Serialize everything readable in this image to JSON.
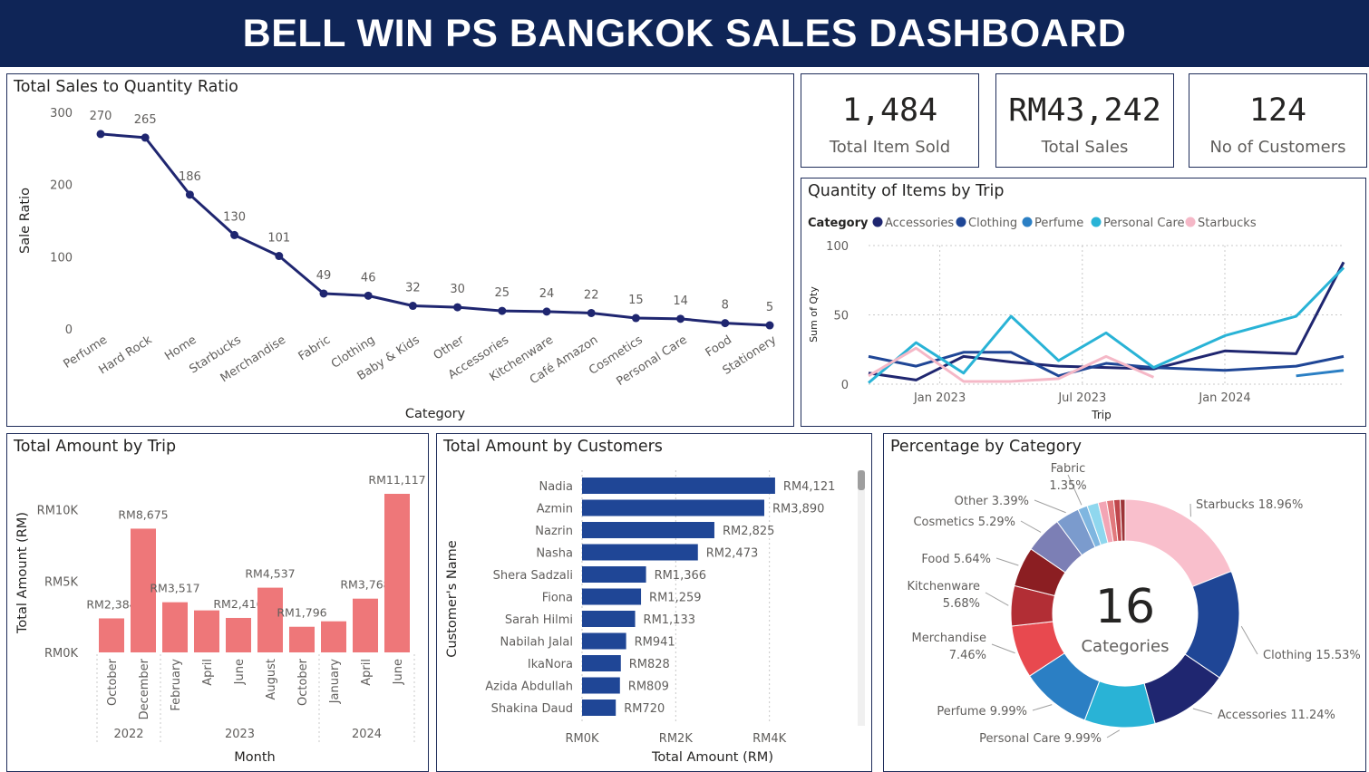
{
  "header": {
    "title": "BELL WIN PS BANGKOK SALES DASHBOARD"
  },
  "kpis": [
    {
      "value": "1,484",
      "label": "Total Item Sold"
    },
    {
      "value": "RM43,242",
      "label": "Total Sales"
    },
    {
      "value": "124",
      "label": "No of Customers"
    }
  ],
  "panels": {
    "ratio": "Total Sales to Quantity Ratio",
    "trip_qty": "Quantity of Items by Trip",
    "trip_amount": "Total Amount by Trip",
    "customers": "Total Amount by Customers",
    "percentage": "Percentage by Category"
  },
  "colors": {
    "navy": "#1f2670",
    "header": "#0f2557",
    "bar_red": "#ee7779",
    "bar_blue": "#1f4696",
    "grid": "#c8c8c8"
  },
  "chart_data": [
    {
      "type": "line",
      "title": "Total Sales to Quantity Ratio",
      "xlabel": "Category",
      "ylabel": "Sale Ratio",
      "ylim": [
        0,
        300
      ],
      "yticks": [
        0,
        100,
        200,
        300
      ],
      "categories": [
        "Perfume",
        "Hard Rock",
        "Home",
        "Starbucks",
        "Merchandise",
        "Fabric",
        "Clothing",
        "Baby & Kids",
        "Other",
        "Accessories",
        "Kitchenware",
        "Café Amazon",
        "Cosmetics",
        "Personal Care",
        "Food",
        "Stationery"
      ],
      "values": [
        270,
        265,
        186,
        130,
        101,
        49,
        46,
        32,
        30,
        25,
        24,
        22,
        15,
        14,
        8,
        5
      ]
    },
    {
      "type": "line",
      "title": "Quantity of Items by Trip",
      "xlabel": "Trip",
      "ylabel": "Sum of Qty",
      "ylim": [
        0,
        100
      ],
      "yticks": [
        0,
        50,
        100
      ],
      "xticks": [
        "Jan 2023",
        "Jul 2023",
        "Jan 2024"
      ],
      "legend_title": "Category",
      "legend_position": "top-left",
      "series": [
        {
          "name": "Accessories",
          "color": "#1f2670",
          "points": [
            [
              "2022-10",
              8
            ],
            [
              "2022-12",
              3
            ],
            [
              "2023-02",
              20
            ],
            [
              "2023-04",
              16
            ],
            [
              "2023-06",
              13
            ],
            [
              "2023-08",
              12
            ],
            [
              "2023-10",
              11
            ],
            [
              "2024-01",
              24
            ],
            [
              "2024-04",
              22
            ],
            [
              "2024-06",
              88
            ]
          ]
        },
        {
          "name": "Clothing",
          "color": "#1f4696",
          "points": [
            [
              "2022-10",
              20
            ],
            [
              "2022-12",
              13
            ],
            [
              "2023-02",
              23
            ],
            [
              "2023-04",
              23
            ],
            [
              "2023-06",
              6
            ],
            [
              "2023-08",
              15
            ],
            [
              "2023-10",
              12
            ],
            [
              "2024-01",
              10
            ],
            [
              "2024-04",
              13
            ],
            [
              "2024-06",
              20
            ]
          ]
        },
        {
          "name": "Perfume",
          "color": "#2b7fc4",
          "points": [
            [
              "2024-04",
              6
            ],
            [
              "2024-06",
              10
            ]
          ]
        },
        {
          "name": "Personal Care",
          "color": "#29b3d6",
          "points": [
            [
              "2022-10",
              1
            ],
            [
              "2022-12",
              30
            ],
            [
              "2023-02",
              8
            ],
            [
              "2023-04",
              49
            ],
            [
              "2023-06",
              17
            ],
            [
              "2023-08",
              37
            ],
            [
              "2023-10",
              12
            ],
            [
              "2024-01",
              35
            ],
            [
              "2024-04",
              49
            ],
            [
              "2024-06",
              84
            ]
          ]
        },
        {
          "name": "Starbucks",
          "color": "#f5b8c7",
          "points": [
            [
              "2022-10",
              6
            ],
            [
              "2022-12",
              26
            ],
            [
              "2023-02",
              2
            ],
            [
              "2023-04",
              2
            ],
            [
              "2023-06",
              4
            ],
            [
              "2023-08",
              20
            ],
            [
              "2023-10",
              5
            ]
          ]
        }
      ]
    },
    {
      "type": "bar",
      "title": "Total Amount by Trip",
      "xlabel": "Month",
      "ylabel": "Total Amount (RM)",
      "ylim": [
        0,
        11117
      ],
      "yticks": [
        "RM0K",
        "RM5K",
        "RM10K"
      ],
      "categories": [
        "October",
        "December",
        "February",
        "April",
        "June",
        "August",
        "October",
        "January",
        "April",
        "June"
      ],
      "years": [
        {
          "label": "2022",
          "span": [
            0,
            1
          ]
        },
        {
          "label": "2023",
          "span": [
            2,
            6
          ]
        },
        {
          "label": "2024",
          "span": [
            7,
            9
          ]
        }
      ],
      "values": [
        2384,
        8675,
        3517,
        2945,
        2416,
        4537,
        1796,
        2180,
        3768,
        11117
      ],
      "labels": [
        "RM2,384",
        "RM8,675",
        "RM3,517",
        "",
        "RM2,416",
        "RM4,537",
        "RM1,796",
        "",
        "RM3,768",
        "RM11,117"
      ]
    },
    {
      "type": "bar",
      "orientation": "horizontal",
      "title": "Total Amount by Customers",
      "xlabel": "Total Amount (RM)",
      "ylabel": "Customer's Name",
      "xticks": [
        "RM0K",
        "RM2K",
        "RM4K"
      ],
      "categories": [
        "Nadia",
        "Azmin",
        "Nazrin",
        "Nasha",
        "Shera Sadzali",
        "Fiona",
        "Sarah Hilmi",
        "Nabilah Jalal",
        "IkaNora",
        "Azida Abdullah",
        "Shakina Daud"
      ],
      "values": [
        4121,
        3890,
        2825,
        2473,
        1366,
        1259,
        1133,
        941,
        828,
        809,
        720
      ],
      "labels": [
        "RM4,121",
        "RM3,890",
        "RM2,825",
        "RM2,473",
        "RM1,366",
        "RM1,259",
        "RM1,133",
        "RM941",
        "RM828",
        "RM809",
        "RM720"
      ]
    },
    {
      "type": "pie",
      "title": "Percentage by Category",
      "center_value": "16",
      "center_label": "Categories",
      "slices": [
        {
          "label": "Starbucks",
          "value": 18.96,
          "text": "Starbucks 18.96%",
          "color": "#f9bfcc"
        },
        {
          "label": "Clothing",
          "value": 15.53,
          "text": "Clothing 15.53%",
          "color": "#1f4696"
        },
        {
          "label": "Accessories",
          "value": 11.24,
          "text": "Accessories 11.24%",
          "color": "#1f2670"
        },
        {
          "label": "Personal Care",
          "value": 9.99,
          "text": "Personal Care 9.99%",
          "color": "#29b3d6"
        },
        {
          "label": "Perfume",
          "value": 9.99,
          "text": "Perfume 9.99%",
          "color": "#2b7fc4"
        },
        {
          "label": "Merchandise",
          "value": 7.46,
          "text": "Merchandise\n7.46%",
          "color": "#e8494f"
        },
        {
          "label": "Kitchenware",
          "value": 5.68,
          "text": "Kitchenware\n5.68%",
          "color": "#b22e35"
        },
        {
          "label": "Food",
          "value": 5.64,
          "text": "Food 5.64%",
          "color": "#8b1e22"
        },
        {
          "label": "Cosmetics",
          "value": 5.29,
          "text": "Cosmetics 5.29%",
          "color": "#7c7fb5"
        },
        {
          "label": "Other",
          "value": 3.39,
          "text": "Other 3.39%",
          "color": "#7b9bcd"
        },
        {
          "label": "Fabric",
          "value": 1.35,
          "text": "Fabric\n1.35%",
          "color": "#7fb6e0"
        },
        {
          "label": "",
          "value": 1.6,
          "text": "",
          "color": "#8fd7ee"
        },
        {
          "label": "",
          "value": 1.2,
          "text": "",
          "color": "#f3a5b5"
        },
        {
          "label": "",
          "value": 1.0,
          "text": "",
          "color": "#e2797d"
        },
        {
          "label": "",
          "value": 0.9,
          "text": "",
          "color": "#c0474c"
        },
        {
          "label": "",
          "value": 0.7,
          "text": "",
          "color": "#9d3438"
        }
      ]
    }
  ]
}
